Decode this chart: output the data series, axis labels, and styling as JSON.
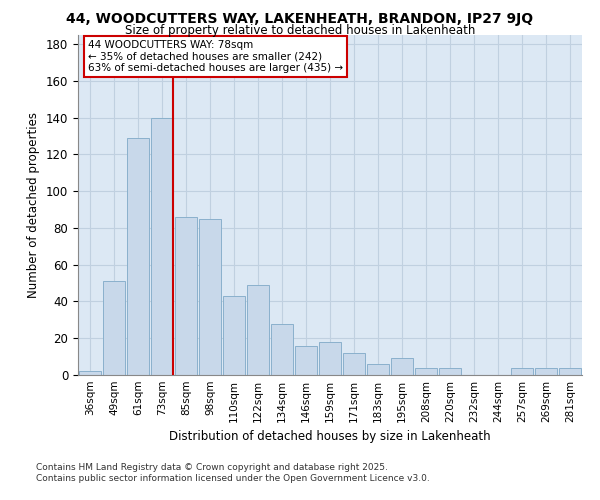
{
  "title": "44, WOODCUTTERS WAY, LAKENHEATH, BRANDON, IP27 9JQ",
  "subtitle": "Size of property relative to detached houses in Lakenheath",
  "xlabel": "Distribution of detached houses by size in Lakenheath",
  "ylabel": "Number of detached properties",
  "categories": [
    "36sqm",
    "49sqm",
    "61sqm",
    "73sqm",
    "85sqm",
    "98sqm",
    "110sqm",
    "122sqm",
    "134sqm",
    "146sqm",
    "159sqm",
    "171sqm",
    "183sqm",
    "195sqm",
    "208sqm",
    "220sqm",
    "232sqm",
    "244sqm",
    "257sqm",
    "269sqm",
    "281sqm"
  ],
  "values": [
    2,
    51,
    129,
    140,
    86,
    85,
    43,
    49,
    28,
    16,
    18,
    12,
    6,
    9,
    4,
    4,
    0,
    0,
    4,
    4,
    4
  ],
  "bar_color": "#c8d8ea",
  "bar_edge_color": "#8ab0cc",
  "bar_edge_width": 0.7,
  "red_line_index": 3,
  "red_line_color": "#cc0000",
  "annotation_line1": "44 WOODCUTTERS WAY: 78sqm",
  "annotation_line2": "← 35% of detached houses are smaller (242)",
  "annotation_line3": "63% of semi-detached houses are larger (435) →",
  "annotation_box_color": "#ffffff",
  "annotation_box_edge": "#cc0000",
  "grid_color": "#c0d0e0",
  "background_color": "#dce8f4",
  "ylim": [
    0,
    185
  ],
  "yticks": [
    0,
    20,
    40,
    60,
    80,
    100,
    120,
    140,
    160,
    180
  ],
  "footnote_line1": "Contains HM Land Registry data © Crown copyright and database right 2025.",
  "footnote_line2": "Contains public sector information licensed under the Open Government Licence v3.0."
}
